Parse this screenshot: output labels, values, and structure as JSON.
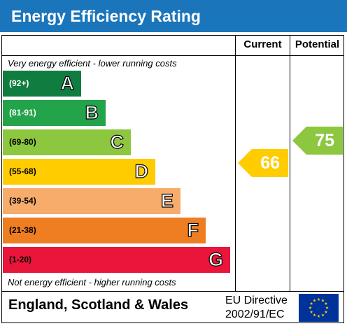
{
  "title": "Energy Efficiency Rating",
  "headers": {
    "current": "Current",
    "potential": "Potential"
  },
  "notes": {
    "top": "Very energy efficient - lower running costs",
    "bottom": "Not energy efficient - higher running costs"
  },
  "bands": [
    {
      "range": "(92+)",
      "letter": "A",
      "color": "#107d40",
      "range_color": "#ffffff"
    },
    {
      "range": "(81-91)",
      "letter": "B",
      "color": "#23a34a",
      "range_color": "#ffffff"
    },
    {
      "range": "(69-80)",
      "letter": "C",
      "color": "#8dc63f",
      "range_color": "#000000"
    },
    {
      "range": "(55-68)",
      "letter": "D",
      "color": "#ffcc00",
      "range_color": "#000000"
    },
    {
      "range": "(39-54)",
      "letter": "E",
      "color": "#f7ac6b",
      "range_color": "#000000"
    },
    {
      "range": "(21-38)",
      "letter": "F",
      "color": "#ef7d22",
      "range_color": "#000000"
    },
    {
      "range": "(1-20)",
      "letter": "G",
      "color": "#e9153b",
      "range_color": "#000000"
    }
  ],
  "current": {
    "value": "66",
    "band": "D",
    "color": "#ffcc00"
  },
  "potential": {
    "value": "75",
    "band": "C",
    "color": "#8dc63f"
  },
  "footer": {
    "region": "England, Scotland & Wales",
    "directive_line1": "EU Directive",
    "directive_line2": "2002/91/EC"
  },
  "eu_flag": {
    "icon": "eu-flag-icon",
    "background": "#003399",
    "stars": "#ffcc00"
  }
}
